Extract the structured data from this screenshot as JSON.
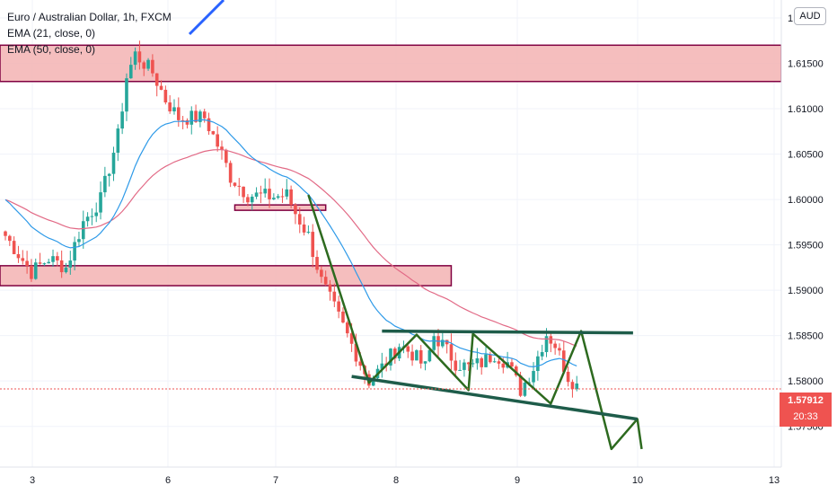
{
  "legend": {
    "title": "Euro / Australian Dollar, 1h, FXCM",
    "ema21": "EMA (21, close, 0)",
    "ema50": "EMA (50, close, 0)"
  },
  "currency_button": "AUD",
  "price_tag": {
    "price": "1.57912",
    "countdown": "20:33"
  },
  "colors": {
    "up": "#26a69a",
    "down": "#ef5350",
    "ema21": "#2e9ae8",
    "ema50": "#e26a86",
    "zone_fill": "#f3b3b3",
    "zone_border": "#800040",
    "pattern": "#2d6a1f",
    "trendline": "#1e5c4a",
    "drawn_line": "#2962ff"
  },
  "chart_data": {
    "type": "candlestick",
    "title": "Euro / Australian Dollar, 1h, FXCM",
    "ylim": [
      1.572,
      1.62
    ],
    "y_ticks": [
      "1.57500",
      "1.58000",
      "1.58500",
      "1.59000",
      "1.59500",
      "1.60000",
      "1.60500",
      "1.61000",
      "1.61500",
      "1.62000"
    ],
    "y_tick_values": [
      1.575,
      1.58,
      1.585,
      1.59,
      1.595,
      1.6,
      1.605,
      1.61,
      1.615,
      1.62
    ],
    "x_ticks": [
      {
        "label": "3",
        "t": 3
      },
      {
        "label": "6",
        "t": 6
      },
      {
        "label": "7",
        "t": 7
      },
      {
        "label": "8",
        "t": 8
      },
      {
        "label": "9",
        "t": 9
      },
      {
        "label": "10",
        "t": 10
      },
      {
        "label": "13",
        "t": 13
      }
    ],
    "current_price": 1.57912,
    "anchors": [
      [
        0,
        1.596
      ],
      [
        6,
        1.592
      ],
      [
        10,
        1.5935
      ],
      [
        14,
        1.5925
      ],
      [
        18,
        1.5975
      ],
      [
        22,
        1.6
      ],
      [
        26,
        1.607
      ],
      [
        28,
        1.6135
      ],
      [
        30,
        1.616
      ],
      [
        34,
        1.614
      ],
      [
        37,
        1.611
      ],
      [
        40,
        1.609
      ],
      [
        46,
        1.609
      ],
      [
        48,
        1.607
      ],
      [
        50,
        1.605
      ],
      [
        52,
        1.6025
      ],
      [
        56,
        1.6005
      ],
      [
        62,
        1.6003
      ],
      [
        65,
        1.6005
      ],
      [
        67,
        1.5985
      ],
      [
        70,
        1.596
      ],
      [
        73,
        1.591
      ],
      [
        76,
        1.588
      ],
      [
        79,
        1.585
      ],
      [
        82,
        1.582
      ],
      [
        84,
        1.58
      ],
      [
        87,
        1.5815
      ],
      [
        91,
        1.584
      ],
      [
        94,
        1.583
      ],
      [
        97,
        1.5815
      ],
      [
        99,
        1.585
      ],
      [
        101,
        1.584
      ],
      [
        104,
        1.582
      ],
      [
        107,
        1.5815
      ],
      [
        110,
        1.582
      ],
      [
        113,
        1.583
      ],
      [
        116,
        1.582
      ],
      [
        119,
        1.579
      ],
      [
        122,
        1.5815
      ],
      [
        125,
        1.5852
      ],
      [
        127,
        1.584
      ],
      [
        130,
        1.5805
      ],
      [
        132,
        1.5795
      ]
    ],
    "series": [
      {
        "name": "EMA (21, close, 0)"
      },
      {
        "name": "EMA (50, close, 0)"
      }
    ],
    "zones": [
      {
        "price_low": 1.613,
        "price_high": 1.617,
        "bar_from": -1,
        "bar_to": 175
      },
      {
        "price_low": 1.599,
        "price_high": 1.5994,
        "bar_from": 53,
        "bar_to": 74
      },
      {
        "price_low": 1.5905,
        "price_high": 1.5927,
        "bar_from": -1,
        "bar_to": 103
      }
    ],
    "pattern_zigzag": [
      [
        70,
        1.6005
      ],
      [
        84,
        1.5798
      ],
      [
        95,
        1.5851
      ],
      [
        107,
        1.579
      ],
      [
        108,
        1.5852
      ],
      [
        126,
        1.5775
      ],
      [
        133,
        1.5855
      ],
      [
        140,
        1.5725
      ],
      [
        146,
        1.5758
      ],
      [
        147,
        1.5725
      ]
    ],
    "resistance_line": [
      [
        87,
        1.5855
      ],
      [
        145,
        1.5853
      ]
    ],
    "support_line": [
      [
        80,
        1.5805
      ],
      [
        146,
        1.5758
      ]
    ]
  }
}
